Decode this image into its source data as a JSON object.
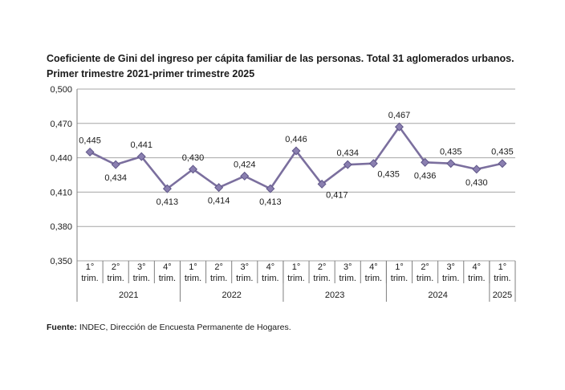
{
  "title_line1": "Coeficiente de Gini del ingreso per cápita familiar de las personas. Total 31 aglomerados urbanos.",
  "title_line2": "Primer trimestre 2021-primer trimestre 2025",
  "source_label": "Fuente:",
  "source_text": " INDEC, Dirección de Encuesta Permanente de Hogares.",
  "colors": {
    "line": "#7b6f9e",
    "marker": "#8a7fb0",
    "marker_edge": "#5f5688",
    "grid": "#a6a6a6",
    "axis": "#7f7f7f"
  },
  "chart_data": {
    "type": "line",
    "title": "Coeficiente de Gini del ingreso per cápita familiar de las personas. Total 31 aglomerados urbanos. Primer trimestre 2021-primer trimestre 2025",
    "ylim": [
      0.35,
      0.5
    ],
    "yticks": [
      "0,350",
      "0,380",
      "0,410",
      "0,440",
      "0,470",
      "0,500"
    ],
    "ytick_values": [
      0.35,
      0.38,
      0.41,
      0.44,
      0.47,
      0.5
    ],
    "grid": true,
    "categories": [
      "1° trim. 2021",
      "2° trim. 2021",
      "3° trim. 2021",
      "4° trim. 2021",
      "1° trim. 2022",
      "2° trim. 2022",
      "3° trim. 2022",
      "4° trim. 2022",
      "1° trim. 2023",
      "2° trim. 2023",
      "3° trim. 2023",
      "4° trim. 2023",
      "1° trim. 2024",
      "2° trim. 2024",
      "3° trim. 2024",
      "4° trim. 2024",
      "1° trim. 2025"
    ],
    "quarter_labels": [
      [
        "1°",
        "trim."
      ],
      [
        "2°",
        "trim."
      ],
      [
        "3°",
        "trim."
      ],
      [
        "4°",
        "trim."
      ],
      [
        "1°",
        "trim."
      ],
      [
        "2°",
        "trim."
      ],
      [
        "3°",
        "trim."
      ],
      [
        "4°",
        "trim."
      ],
      [
        "1°",
        "trim."
      ],
      [
        "2°",
        "trim."
      ],
      [
        "3°",
        "trim."
      ],
      [
        "4°",
        "trim."
      ],
      [
        "1°",
        "trim."
      ],
      [
        "2°",
        "trim."
      ],
      [
        "3°",
        "trim."
      ],
      [
        "4°",
        "trim."
      ],
      [
        "1°",
        "trim."
      ]
    ],
    "years": [
      {
        "label": "2021",
        "quarters": 4
      },
      {
        "label": "2022",
        "quarters": 4
      },
      {
        "label": "2023",
        "quarters": 4
      },
      {
        "label": "2024",
        "quarters": 4
      },
      {
        "label": "2025",
        "quarters": 1
      }
    ],
    "values": [
      0.445,
      0.434,
      0.441,
      0.413,
      0.43,
      0.414,
      0.424,
      0.413,
      0.446,
      0.417,
      0.434,
      0.435,
      0.467,
      0.436,
      0.435,
      0.43,
      0.435
    ],
    "value_labels": [
      "0,445",
      "0,434",
      "0,441",
      "0,413",
      "0,430",
      "0,414",
      "0,424",
      "0,413",
      "0,446",
      "0,417",
      "0,434",
      "0,435",
      "0,467",
      "0,436",
      "0,435",
      "0,430",
      "0,435"
    ],
    "label_positions": [
      "above",
      "below",
      "above",
      "below",
      "above",
      "below",
      "above",
      "below",
      "above",
      "below-right",
      "above",
      "below-right",
      "above",
      "below",
      "above",
      "below",
      "above"
    ]
  }
}
